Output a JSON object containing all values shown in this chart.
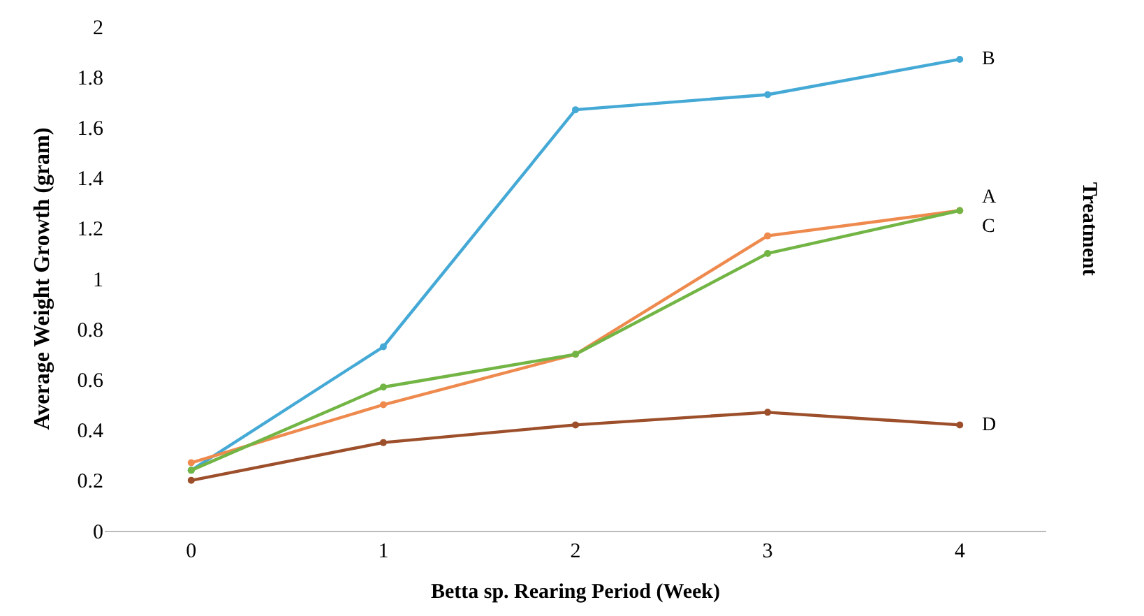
{
  "chart_data": {
    "type": "line",
    "xlabel": "Betta sp. Rearing Period (Week)",
    "ylabel": "Average Weight Growth (gram)",
    "legend_title": "Treatment",
    "categories": [
      "0",
      "1",
      "2",
      "3",
      "4"
    ],
    "ylim": [
      0,
      2
    ],
    "yticks": [
      0,
      0.2,
      0.4,
      0.6,
      0.8,
      1,
      1.2,
      1.4,
      1.6,
      1.8,
      2
    ],
    "legend": false,
    "marker": "circle",
    "line_style": "solid",
    "series": [
      {
        "name": "B",
        "color": "#45a9d6",
        "values": [
          0.24,
          0.73,
          1.67,
          1.73,
          1.87
        ]
      },
      {
        "name": "A",
        "color": "#ee8a4e",
        "values": [
          0.27,
          0.5,
          0.7,
          1.17,
          1.27
        ]
      },
      {
        "name": "C",
        "color": "#72b545",
        "values": [
          0.24,
          0.57,
          0.7,
          1.1,
          1.27
        ]
      },
      {
        "name": "D",
        "color": "#9c4f2a",
        "values": [
          0.2,
          0.35,
          0.42,
          0.47,
          0.42
        ]
      }
    ]
  }
}
